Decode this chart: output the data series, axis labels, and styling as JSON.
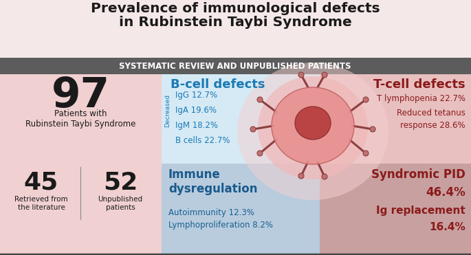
{
  "title_line1": "Prevalence of immunological defects",
  "title_line2": "in Rubinstein Taybi Syndrome",
  "subtitle": "SYSTEMATIC REVIEW AND UNPUBLISHED PATIENTS",
  "bg_color_top": "#f5e8e8",
  "bg_color_left": "#f0d0d0",
  "bg_color_bcell": "#d5eaf5",
  "bg_color_tcell": "#e8c0c0",
  "bg_color_immune": "#b8ccde",
  "bg_color_syndromic": "#c8a0a0",
  "subtitle_bg": "#5c5c5c",
  "subtitle_color": "#ffffff",
  "title_color": "#1a1a1a",
  "bcell_header_color": "#1a7ab5",
  "tcell_header_color": "#8b1a1a",
  "bcell_text_color": "#1a7ab5",
  "tcell_text_color": "#8b1a1a",
  "immune_header_color": "#1a5a8b",
  "immune_text_color": "#1a6090",
  "syndromic_color": "#8b1a1a",
  "decreased_color": "#1a7ab5",
  "n_patients": "97",
  "patients_label": "Patients with\nRubinstein Taybi Syndrome",
  "n_retrieved": "45",
  "retrieved_label": "Retrieved from\nthe literature",
  "n_unpublished": "52",
  "unpublished_label": "Unpublished\npatients",
  "bcell_header": "B-cell defects",
  "bcell_items": [
    "IgG 12.7%",
    "IgA 19.6%",
    "IgM 18.2%",
    "B cells 22.7%"
  ],
  "decreased_label": "Decreased",
  "tcell_header": "T-cell defects",
  "tcell_item1": "T lymphopenia 22.7%",
  "tcell_item2a": "Reduced tetanus",
  "tcell_item2b": "response 28.6%",
  "immune_header": "Immune\ndysregulation",
  "immune_item1": "Autoimmunity 12.3%",
  "immune_item2": "Lymphoproliferation 8.2%",
  "syndromic_pid": "Syndromic PID",
  "syndromic_pct": "46.4%",
  "ig_replacement": "Ig replacement",
  "ig_pct": "16.4%"
}
